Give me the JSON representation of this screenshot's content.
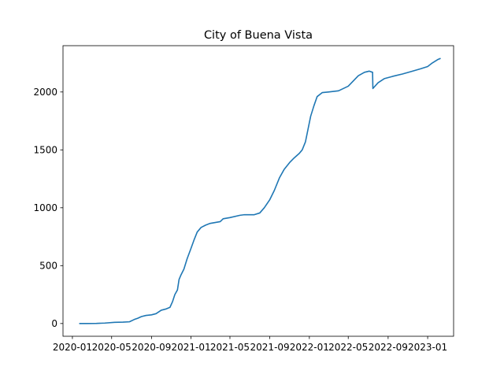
{
  "chart_data": {
    "type": "line",
    "title": "City of Buena Vista",
    "xlabel": "",
    "ylabel": "",
    "xlim": [
      "2019-12-03",
      "2023-03-22"
    ],
    "ylim": [
      -110,
      2400
    ],
    "grid": false,
    "legend": "none",
    "x_ticks": [
      "2020-01",
      "2020-05",
      "2020-09",
      "2021-01",
      "2021-05",
      "2021-09",
      "2022-01",
      "2022-05",
      "2022-09",
      "2023-01"
    ],
    "y_ticks": [
      0,
      500,
      1000,
      1500,
      2000
    ],
    "line_color": "#1f77b4",
    "series": [
      {
        "points": [
          [
            "2020-01-22",
            0
          ],
          [
            "2020-02-15",
            0
          ],
          [
            "2020-03-15",
            1
          ],
          [
            "2020-04-10",
            4
          ],
          [
            "2020-05-10",
            10
          ],
          [
            "2020-06-05",
            12
          ],
          [
            "2020-06-25",
            15
          ],
          [
            "2020-07-10",
            35
          ],
          [
            "2020-07-20",
            45
          ],
          [
            "2020-08-01",
            60
          ],
          [
            "2020-08-15",
            70
          ],
          [
            "2020-09-01",
            75
          ],
          [
            "2020-09-15",
            85
          ],
          [
            "2020-10-01",
            115
          ],
          [
            "2020-10-15",
            125
          ],
          [
            "2020-10-28",
            140
          ],
          [
            "2020-11-05",
            190
          ],
          [
            "2020-11-12",
            250
          ],
          [
            "2020-11-20",
            290
          ],
          [
            "2020-11-25",
            380
          ],
          [
            "2020-12-01",
            420
          ],
          [
            "2020-12-10",
            470
          ],
          [
            "2020-12-20",
            560
          ],
          [
            "2021-01-01",
            650
          ],
          [
            "2021-01-10",
            720
          ],
          [
            "2021-01-20",
            790
          ],
          [
            "2021-02-01",
            830
          ],
          [
            "2021-02-15",
            850
          ],
          [
            "2021-03-01",
            865
          ],
          [
            "2021-04-01",
            880
          ],
          [
            "2021-04-10",
            905
          ],
          [
            "2021-05-01",
            915
          ],
          [
            "2021-06-01",
            935
          ],
          [
            "2021-06-15",
            940
          ],
          [
            "2021-07-15",
            940
          ],
          [
            "2021-08-01",
            955
          ],
          [
            "2021-08-15",
            1000
          ],
          [
            "2021-09-01",
            1070
          ],
          [
            "2021-09-15",
            1150
          ],
          [
            "2021-10-01",
            1260
          ],
          [
            "2021-10-15",
            1330
          ],
          [
            "2021-11-01",
            1390
          ],
          [
            "2021-11-15",
            1430
          ],
          [
            "2021-12-01",
            1470
          ],
          [
            "2021-12-10",
            1500
          ],
          [
            "2021-12-20",
            1570
          ],
          [
            "2021-12-28",
            1680
          ],
          [
            "2022-01-05",
            1790
          ],
          [
            "2022-01-15",
            1880
          ],
          [
            "2022-01-25",
            1960
          ],
          [
            "2022-02-10",
            1995
          ],
          [
            "2022-03-01",
            2000
          ],
          [
            "2022-04-01",
            2010
          ],
          [
            "2022-05-01",
            2050
          ],
          [
            "2022-06-01",
            2140
          ],
          [
            "2022-06-20",
            2170
          ],
          [
            "2022-07-05",
            2180
          ],
          [
            "2022-07-15",
            2170
          ],
          [
            "2022-07-16",
            2030
          ],
          [
            "2022-08-01",
            2080
          ],
          [
            "2022-08-20",
            2115
          ],
          [
            "2022-09-15",
            2135
          ],
          [
            "2022-10-15",
            2155
          ],
          [
            "2022-11-15",
            2180
          ],
          [
            "2022-12-10",
            2200
          ],
          [
            "2023-01-01",
            2220
          ],
          [
            "2023-01-15",
            2250
          ],
          [
            "2023-02-01",
            2280
          ],
          [
            "2023-02-10",
            2290
          ]
        ]
      }
    ]
  }
}
